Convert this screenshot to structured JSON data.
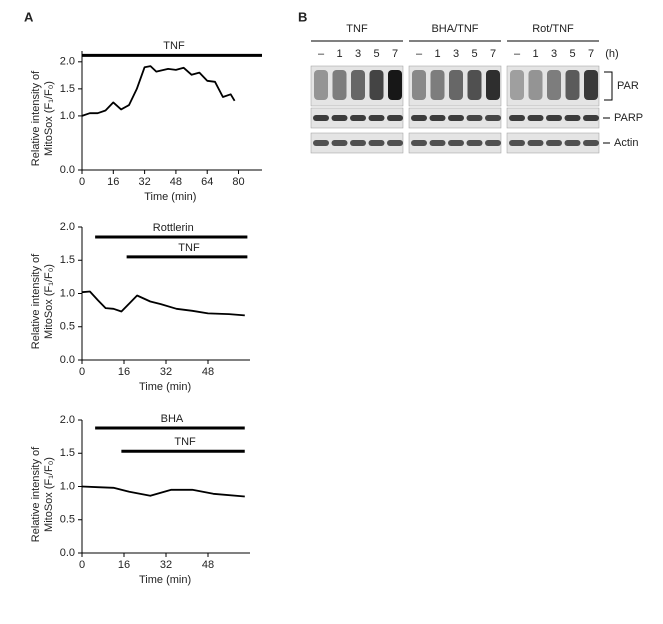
{
  "panels": [
    "A",
    "B"
  ],
  "chart_data": [
    {
      "type": "line",
      "xlabel": "Time (min)",
      "ylabel": [
        "Relative intensity of",
        "MitoSox (F₁/F₀)"
      ],
      "color": "#000000",
      "x": [
        0,
        4,
        8,
        12,
        16,
        20,
        24,
        28,
        32,
        35,
        38,
        44,
        48,
        52,
        56,
        60,
        64,
        68,
        72,
        76,
        78
      ],
      "values": [
        1.0,
        1.05,
        1.05,
        1.1,
        1.25,
        1.12,
        1.2,
        1.5,
        1.9,
        1.92,
        1.82,
        1.87,
        1.85,
        1.89,
        1.76,
        1.8,
        1.65,
        1.63,
        1.35,
        1.4,
        1.28
      ],
      "xlim": [
        0,
        92
      ],
      "ylim": [
        0,
        2.2
      ],
      "xticks": [
        0,
        16,
        32,
        48,
        64,
        80
      ],
      "yticks": [
        {
          "value": 0,
          "label": "0.0"
        },
        {
          "value": 1,
          "label": "1.0"
        },
        1.5,
        {
          "value": 2,
          "label": "2.0"
        }
      ],
      "annotations": [
        {
          "text": "TNF",
          "start": 0,
          "end": 92,
          "level": 2.12
        }
      ]
    },
    {
      "type": "line",
      "xlabel": "Time (min)",
      "ylabel": [
        "Relative intensity of",
        "MitoSox (F₁/F₀)"
      ],
      "color": "#000000",
      "x": [
        0,
        3,
        6,
        9,
        12,
        15,
        18,
        21,
        26,
        30,
        36,
        42,
        48,
        56,
        62
      ],
      "values": [
        1.02,
        1.03,
        0.9,
        0.78,
        0.77,
        0.73,
        0.85,
        0.97,
        0.88,
        0.84,
        0.77,
        0.74,
        0.7,
        0.69,
        0.67
      ],
      "xlim": [
        0,
        64
      ],
      "ylim": [
        0,
        2.0
      ],
      "xticks": [
        0,
        16,
        32,
        48
      ],
      "yticks": [
        {
          "value": 0,
          "label": "0.0"
        },
        0.5,
        {
          "value": 1,
          "label": "1.0"
        },
        1.5,
        {
          "value": 2,
          "label": "2.0"
        }
      ],
      "annotations": [
        {
          "text": "Rottlerin",
          "start": 5,
          "end": 63,
          "level": 1.85
        },
        {
          "text": "TNF",
          "start": 17,
          "end": 63,
          "level": 1.55
        }
      ]
    },
    {
      "type": "line",
      "xlabel": "Time (min)",
      "ylabel": [
        "Relative intensity of",
        "MitoSox (F₁/F₀)"
      ],
      "color": "#000000",
      "x": [
        0,
        6,
        12,
        18,
        26,
        34,
        42,
        50,
        62
      ],
      "values": [
        1.0,
        0.99,
        0.98,
        0.92,
        0.86,
        0.95,
        0.95,
        0.89,
        0.85
      ],
      "xlim": [
        0,
        64
      ],
      "ylim": [
        0,
        2.0
      ],
      "xticks": [
        0,
        16,
        32,
        48
      ],
      "yticks": [
        {
          "value": 0,
          "label": "0.0"
        },
        0.5,
        {
          "value": 1,
          "label": "1.0"
        },
        1.5,
        {
          "value": 2,
          "label": "2.0"
        }
      ],
      "annotations": [
        {
          "text": "BHA",
          "start": 5,
          "end": 62,
          "level": 1.88
        },
        {
          "text": "TNF",
          "start": 15,
          "end": 62,
          "level": 1.53
        }
      ]
    }
  ],
  "blot": {
    "groups": [
      "TNF",
      "BHA/TNF",
      "Rot/TNF"
    ],
    "lanes": [
      "–",
      "1",
      "3",
      "5",
      "7"
    ],
    "unit": "(h)",
    "rows": [
      "PAR",
      "PARP",
      "Actin"
    ]
  }
}
